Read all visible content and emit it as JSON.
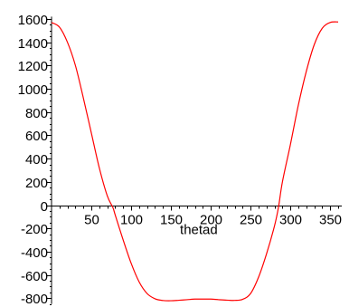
{
  "chart_data": {
    "type": "line",
    "title": "",
    "xlabel": "thetad",
    "ylabel": "",
    "xlim": [
      0,
      360
    ],
    "ylim": [
      -850,
      1620
    ],
    "grid": false,
    "legend": "none",
    "x_ticks_major": [
      50,
      100,
      150,
      200,
      250,
      300,
      350
    ],
    "y_ticks_major": [
      1600,
      1400,
      1200,
      1000,
      800,
      600,
      400,
      200,
      0,
      -200,
      -400,
      -600,
      -800
    ],
    "colors": {
      "series": "#ff0000",
      "axis": "#000000"
    },
    "series": [
      {
        "x": [
          0,
          10,
          20,
          30,
          40,
          50,
          60,
          70,
          77,
          80,
          90,
          100,
          110,
          120,
          130,
          140,
          150,
          160,
          170,
          180,
          190,
          200,
          210,
          220,
          230,
          240,
          250,
          260,
          270,
          280,
          285,
          290,
          300,
          310,
          320,
          330,
          340,
          350,
          360
        ],
        "y": [
          1570,
          1530,
          1400,
          1200,
          920,
          620,
          320,
          80,
          -20,
          -85,
          -300,
          -500,
          -660,
          -760,
          -805,
          -820,
          -822,
          -818,
          -813,
          -808,
          -808,
          -808,
          -813,
          -817,
          -819,
          -810,
          -760,
          -620,
          -420,
          -180,
          -20,
          200,
          520,
          860,
          1150,
          1380,
          1520,
          1570,
          1575
        ]
      }
    ]
  }
}
